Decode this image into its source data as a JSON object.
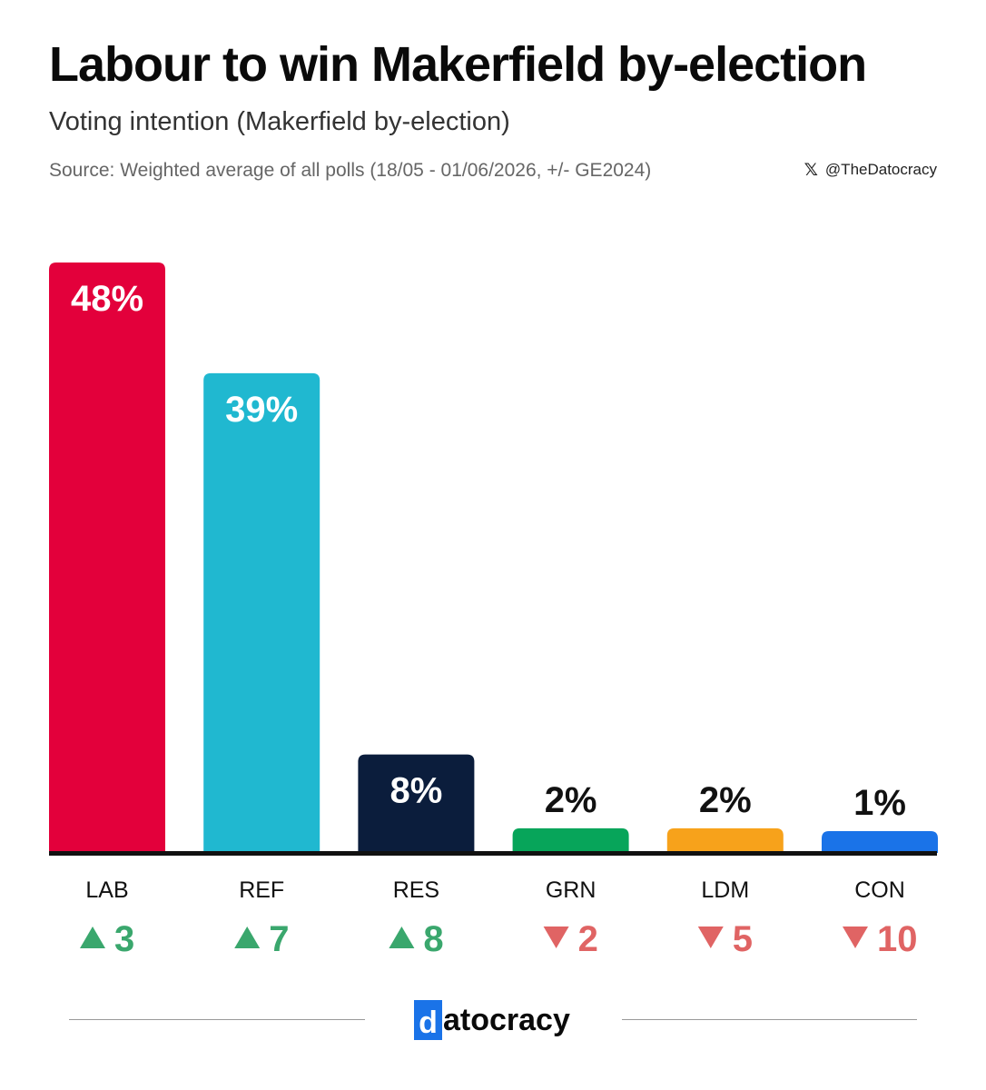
{
  "title": "Labour to win Makerfield by-election",
  "subtitle": "Voting intention (Makerfield by-election)",
  "source": "Source: Weighted average of all polls (18/05 - 01/06/2026, +/- GE2024)",
  "handle": {
    "icon": "x-logo-icon",
    "glyph": "𝕏",
    "text": "@TheDatocracy"
  },
  "logo": {
    "first_letter": "d",
    "rest": "atocracy"
  },
  "colors": {
    "up": "#3aa76d",
    "down": "#e06464",
    "axis": "#111111"
  },
  "chart_data": {
    "type": "bar",
    "categories": [
      "LAB",
      "REF",
      "RES",
      "GRN",
      "LDM",
      "CON"
    ],
    "values": [
      48,
      39,
      8,
      2,
      2,
      1
    ],
    "value_labels": [
      "48%",
      "39%",
      "8%",
      "2%",
      "2%",
      "1%"
    ],
    "bar_colors": [
      "#e3003b",
      "#20b8d0",
      "#0b1d3c",
      "#07a55a",
      "#f7a21b",
      "#1a73e8"
    ],
    "changes": [
      3,
      7,
      8,
      -2,
      -5,
      -10
    ],
    "change_labels": [
      "3",
      "7",
      "8",
      "2",
      "5",
      "10"
    ],
    "title": "Labour to win Makerfield by-election",
    "xlabel": "",
    "ylabel": "",
    "ylim": [
      0,
      48
    ],
    "grid": false,
    "legend": "none"
  }
}
